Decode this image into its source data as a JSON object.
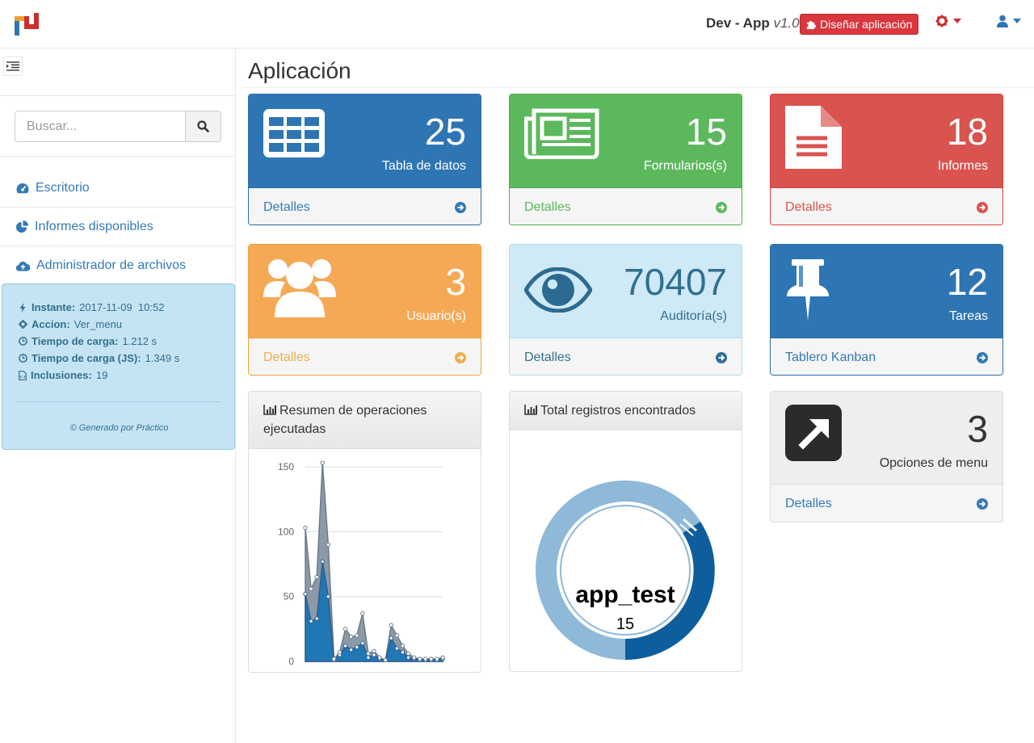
{
  "navbar": {
    "app_name": "Dev - App",
    "version": "v1.0",
    "design_button": "Diseñar aplicación"
  },
  "sidebar": {
    "search_placeholder": "Buscar...",
    "items": [
      {
        "label": "Escritorio",
        "icon": "dashboard-icon"
      },
      {
        "label": "Informes disponibles",
        "icon": "pie-chart-icon"
      },
      {
        "label": "Administrador de archivos",
        "icon": "cloud-upload-icon"
      }
    ],
    "info": {
      "instante_label": "Instante:",
      "instante_value": "2017-11-09  10:52",
      "accion_label": "Accion:",
      "accion_value": "Ver_menu",
      "carga_label": "Tiempo de carga:",
      "carga_value": "1.212 s",
      "carga_js_label": "Tiempo de carga (JS):",
      "carga_js_value": "1.349 s",
      "inclusiones_label": "Inclusiones:",
      "inclusiones_value": "19",
      "footer": "© Generado por Práctico"
    }
  },
  "main": {
    "title": "Aplicación",
    "tiles": [
      {
        "number": "25",
        "label": "Tabla de datos",
        "footer": "Detalles",
        "icon": "table-icon"
      },
      {
        "number": "15",
        "label": "Formularios(s)",
        "footer": "Detalles",
        "icon": "newspaper-icon"
      },
      {
        "number": "18",
        "label": "Informes",
        "footer": "Detalles",
        "icon": "document-icon"
      },
      {
        "number": "3",
        "label": "Usuario(s)",
        "footer": "Detalles",
        "icon": "users-icon"
      },
      {
        "number": "70407",
        "label": "Auditoría(s)",
        "footer": "Detalles",
        "icon": "eye-icon"
      },
      {
        "number": "12",
        "label": "Tareas",
        "footer": "Tablero Kanban",
        "icon": "pushpin-icon"
      },
      {
        "number": "3",
        "label": "Opciones de menu",
        "footer": "Detalles",
        "icon": "external-link-icon"
      }
    ],
    "panels": {
      "operations_title": "Resumen de operaciones ejecutadas",
      "records_title": "Total registros encontrados"
    }
  },
  "colors": {
    "primary": "#2e75b4",
    "success": "#5cb85c",
    "danger": "#d9534f",
    "warning": "#f5a955",
    "info": "#cfe9f6"
  },
  "chart_data": [
    {
      "type": "area",
      "title": "Resumen de operaciones ejecutadas",
      "ylim": [
        0,
        150
      ],
      "yticks": [
        "150",
        "100",
        "50",
        "0"
      ],
      "x": [
        0,
        1,
        2,
        3,
        4,
        5,
        6,
        7,
        8,
        9,
        10,
        11,
        12,
        13,
        14,
        15,
        16,
        17,
        18,
        19,
        20,
        21,
        22,
        23,
        24
      ],
      "series": [
        {
          "values": [
            52,
            31,
            33,
            77,
            50,
            1,
            5,
            12,
            9,
            11,
            14,
            3,
            5,
            2,
            1,
            18,
            10,
            7,
            3,
            2,
            1,
            1,
            1,
            1,
            2
          ]
        },
        {
          "values": [
            103,
            56,
            65,
            153,
            90,
            2,
            7,
            25,
            19,
            20,
            37,
            6,
            8,
            3,
            1,
            28,
            20,
            12,
            6,
            3,
            2,
            2,
            2,
            2,
            3
          ]
        }
      ]
    },
    {
      "type": "pie",
      "title": "Total registros encontrados",
      "center_label": "app_test",
      "center_value": "15",
      "slices": [
        {
          "label": "app_test",
          "value": 15
        }
      ]
    }
  ]
}
